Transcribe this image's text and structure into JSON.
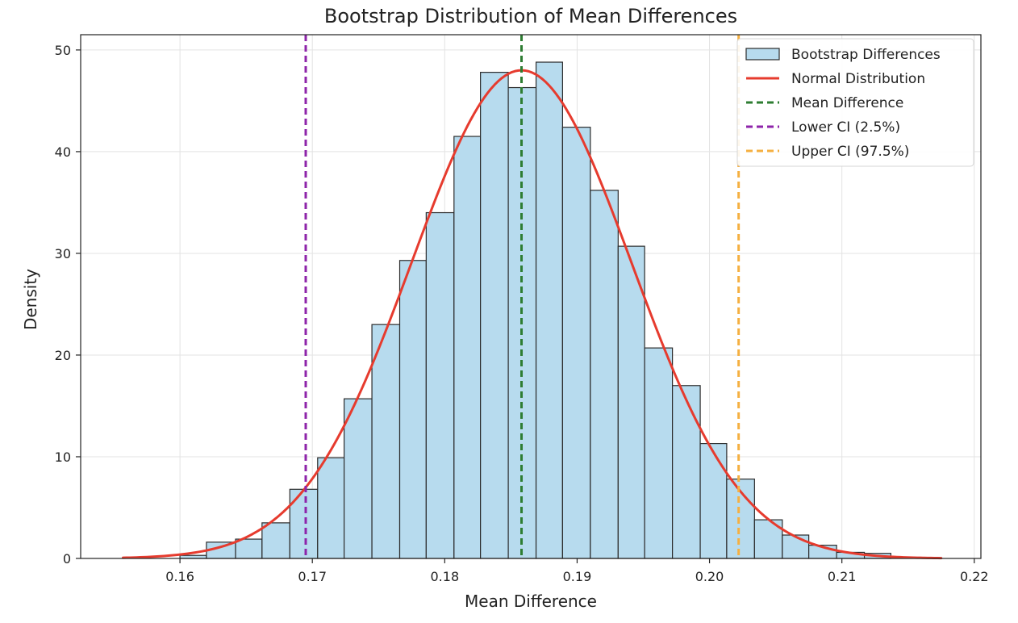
{
  "chart_data": {
    "type": "bar",
    "title": "Bootstrap Distribution of Mean Differences",
    "xlabel": "Mean Difference",
    "ylabel": "Density",
    "xlim": [
      0.1525,
      0.2205
    ],
    "ylim": [
      0,
      51.5
    ],
    "xticks": [
      0.16,
      0.17,
      0.18,
      0.19,
      0.2,
      0.21,
      0.22
    ],
    "xtick_labels": [
      "0.16",
      "0.17",
      "0.18",
      "0.19",
      "0.20",
      "0.21",
      "0.22"
    ],
    "yticks": [
      0,
      10,
      20,
      30,
      40,
      50
    ],
    "ytick_labels": [
      "0",
      "10",
      "20",
      "30",
      "40",
      "50"
    ],
    "grid": true,
    "legend_position": "top-right",
    "histogram": {
      "name": "Bootstrap Differences",
      "color": "#b7dbee",
      "edge_color": "#2b2b2b",
      "bins": [
        {
          "x0": 0.16,
          "x1": 0.162,
          "value": 0.3
        },
        {
          "x0": 0.162,
          "x1": 0.1642,
          "value": 1.6
        },
        {
          "x0": 0.1642,
          "x1": 0.1662,
          "value": 1.9
        },
        {
          "x0": 0.1662,
          "x1": 0.1683,
          "value": 3.5
        },
        {
          "x0": 0.1683,
          "x1": 0.1704,
          "value": 6.8
        },
        {
          "x0": 0.1704,
          "x1": 0.1724,
          "value": 9.9
        },
        {
          "x0": 0.1724,
          "x1": 0.1745,
          "value": 15.7
        },
        {
          "x0": 0.1745,
          "x1": 0.1766,
          "value": 23.0
        },
        {
          "x0": 0.1766,
          "x1": 0.1786,
          "value": 29.3
        },
        {
          "x0": 0.1786,
          "x1": 0.1807,
          "value": 34.0
        },
        {
          "x0": 0.1807,
          "x1": 0.1827,
          "value": 41.5
        },
        {
          "x0": 0.1827,
          "x1": 0.1848,
          "value": 47.8
        },
        {
          "x0": 0.1848,
          "x1": 0.1869,
          "value": 46.3
        },
        {
          "x0": 0.1869,
          "x1": 0.1889,
          "value": 48.8
        },
        {
          "x0": 0.1889,
          "x1": 0.191,
          "value": 42.4
        },
        {
          "x0": 0.191,
          "x1": 0.1931,
          "value": 36.2
        },
        {
          "x0": 0.1931,
          "x1": 0.1951,
          "value": 30.7
        },
        {
          "x0": 0.1951,
          "x1": 0.1972,
          "value": 20.7
        },
        {
          "x0": 0.1972,
          "x1": 0.1993,
          "value": 17.0
        },
        {
          "x0": 0.1993,
          "x1": 0.2013,
          "value": 11.3
        },
        {
          "x0": 0.2013,
          "x1": 0.2034,
          "value": 7.8
        },
        {
          "x0": 0.2034,
          "x1": 0.2055,
          "value": 3.8
        },
        {
          "x0": 0.2055,
          "x1": 0.2075,
          "value": 2.3
        },
        {
          "x0": 0.2075,
          "x1": 0.2096,
          "value": 1.3
        },
        {
          "x0": 0.2096,
          "x1": 0.2117,
          "value": 0.6
        },
        {
          "x0": 0.2117,
          "x1": 0.2137,
          "value": 0.5
        }
      ]
    },
    "normal_curve": {
      "name": "Normal Distribution",
      "color": "#e63b2e",
      "x_range": [
        0.1557,
        0.2175
      ],
      "peak_x": 0.1858,
      "peak_y": 48.0,
      "sigma": 0.0083
    },
    "reference_lines": [
      {
        "name": "Mean Difference",
        "x": 0.1858,
        "color": "#2e7d32"
      },
      {
        "name": "Lower CI (2.5%)",
        "x": 0.1695,
        "color": "#8e24aa"
      },
      {
        "name": "Upper CI (97.5%)",
        "x": 0.2022,
        "color": "#f5b041"
      }
    ],
    "legend": [
      {
        "label": "Bootstrap Differences",
        "kind": "patch"
      },
      {
        "label": "Normal Distribution",
        "kind": "solid-line"
      },
      {
        "label": "Mean Difference",
        "kind": "dashed-line"
      },
      {
        "label": "Lower CI (2.5%)",
        "kind": "dashed-line"
      },
      {
        "label": "Upper CI (97.5%)",
        "kind": "dashed-line"
      }
    ]
  }
}
